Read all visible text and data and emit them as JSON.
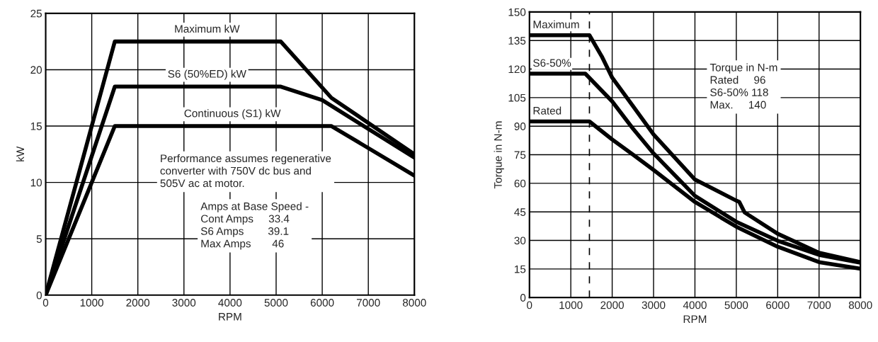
{
  "chart_data": [
    {
      "type": "line",
      "xlabel": "RPM",
      "ylabel": "kW",
      "xlim": [
        0,
        8000
      ],
      "ylim": [
        0,
        25
      ],
      "xticks": [
        0,
        1000,
        2000,
        3000,
        4000,
        5000,
        6000,
        7000,
        8000
      ],
      "yticks": [
        0,
        5,
        10,
        15,
        20,
        25
      ],
      "grid": true,
      "legend": false,
      "marker": "none",
      "line_style": "solid",
      "series": [
        {
          "name": "Maximum kW",
          "color": "#000000",
          "x": [
            0,
            1500,
            5100,
            6200,
            8000
          ],
          "values": [
            0,
            22.5,
            22.5,
            17.5,
            12.5
          ]
        },
        {
          "name": "S6 (50%ED) kW",
          "color": "#000000",
          "x": [
            0,
            1500,
            5100,
            6000,
            8000
          ],
          "values": [
            0,
            18.5,
            18.5,
            17.3,
            12.2
          ]
        },
        {
          "name": "Continuous (S1) kW",
          "color": "#000000",
          "x": [
            0,
            1500,
            6200,
            8000
          ],
          "values": [
            0,
            15,
            15,
            10.6
          ]
        }
      ],
      "annotations": [
        "Performance assumes regenerative\nconverter with 750V dc bus and\n505V ac at motor.",
        "Amps at Base Speed -\nCont Amps     33.4\nS6 Amps        39.1\nMax Amps       46"
      ]
    },
    {
      "type": "line",
      "xlabel": "RPM",
      "ylabel": "Torque in N-m",
      "xlim": [
        0,
        8000
      ],
      "ylim": [
        0,
        150
      ],
      "xticks": [
        0,
        1000,
        2000,
        3000,
        4000,
        5000,
        6000,
        7000,
        8000
      ],
      "yticks": [
        0,
        15,
        30,
        45,
        60,
        75,
        90,
        105,
        120,
        135,
        150
      ],
      "grid": true,
      "legend": false,
      "marker": "none",
      "line_style": "solid",
      "series": [
        {
          "name": "Maximum",
          "color": "#000000",
          "x": [
            0,
            1450,
            1750,
            2000,
            2500,
            3000,
            4000,
            5000,
            5070,
            5200,
            6000,
            7000,
            8000
          ],
          "values": [
            137.8,
            137.8,
            126.6,
            115.5,
            100.6,
            85.7,
            62,
            50.9,
            50.3,
            44.7,
            33.5,
            23.5,
            18.6
          ]
        },
        {
          "name": "S6-50%",
          "color": "#000000",
          "x": [
            0,
            1350,
            2000,
            2500,
            3000,
            4000,
            5000,
            6000,
            7000,
            8000
          ],
          "values": [
            117.6,
            117.6,
            103,
            88.8,
            75.7,
            53.4,
            39.8,
            29.8,
            22.4,
            18.3
          ]
        },
        {
          "name": "Rated",
          "color": "#000000",
          "x": [
            0,
            1450,
            2000,
            2500,
            3000,
            4000,
            5000,
            6000,
            7000,
            8000
          ],
          "values": [
            92.5,
            92.5,
            83,
            75.1,
            67,
            50.2,
            37.2,
            26.7,
            18.6,
            15.1
          ]
        }
      ],
      "ref_lines": [
        {
          "axis": "x",
          "value": 1450,
          "color": "#000000",
          "line_style": "dashed"
        }
      ],
      "annotations": [
        "Torque in N-m\nRated     96\nS6-50% 118\nMax.     140"
      ]
    }
  ]
}
